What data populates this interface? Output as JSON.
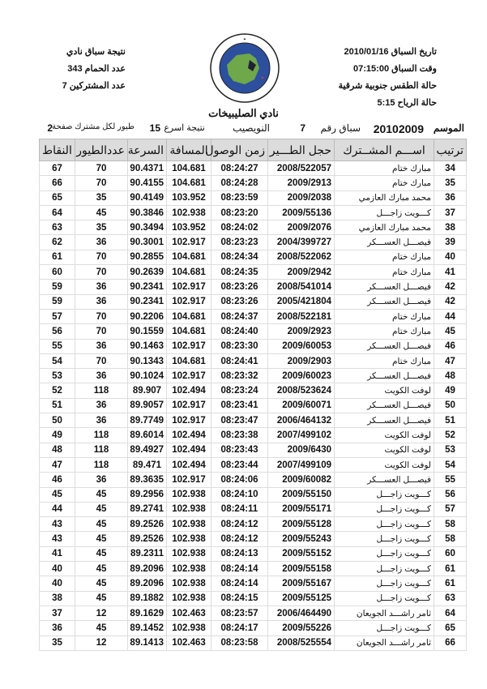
{
  "header_left": {
    "title": "نتيجة سباق نادي",
    "pigeons_label": "عدد الحمام",
    "pigeons": "343",
    "participants_label": "عدد المشتركين",
    "participants": "7"
  },
  "header_right": {
    "date_label": "تاريخ السباق",
    "date": "2010/01/16",
    "time_label": "وقت السباق",
    "time": "07:15:00",
    "weather": "حالة الطقس جنوبية شرقية",
    "wind_label": "حالة الرياح",
    "wind": "5:15"
  },
  "logo": {
    "text_top": "الاتحاد الكويتي لسباق حمام الزاجل",
    "text_bottom": "KUWAIT FEDERATION FOR RACING PIGEON"
  },
  "club": "نادي الصليبيخات",
  "meta": {
    "season_label": "الموسم",
    "season": "20102009",
    "race_label": "سباق رقم",
    "race": "7",
    "location": "النويصيب",
    "fastest_label": "نتيجة اسرع",
    "fastest": "15",
    "per_label": "طيور لكل مشترك صفحة",
    "page": "2"
  },
  "columns": [
    "ترتيب",
    "اســـم المشــترك",
    "حجل الطـــير",
    "زمن الوصول",
    "المسافة",
    "السرعة",
    "عددالطيور",
    "النقاط"
  ],
  "rows": [
    [
      "34",
      "مبارك ختام",
      "2008/522057",
      "08:24:27",
      "104.681",
      "90.4371",
      "70",
      "67"
    ],
    [
      "35",
      "مبارك ختام",
      "2009/2913",
      "08:24:28",
      "104.681",
      "90.4155",
      "70",
      "66"
    ],
    [
      "36",
      "محمد مبارك العازمي",
      "2009/2038",
      "08:23:59",
      "103.952",
      "90.4149",
      "35",
      "65"
    ],
    [
      "37",
      "كـــويت زاجـــل",
      "2009/55136",
      "08:23:20",
      "102.938",
      "90.3846",
      "45",
      "64"
    ],
    [
      "38",
      "محمد مبارك العازمي",
      "2009/2076",
      "08:24:02",
      "103.952",
      "90.3494",
      "35",
      "63"
    ],
    [
      "39",
      "فيصـــل العســـكر",
      "2004/399727",
      "08:23:23",
      "102.917",
      "90.3001",
      "36",
      "62"
    ],
    [
      "40",
      "مبارك ختام",
      "2008/522062",
      "08:24:34",
      "104.681",
      "90.2855",
      "70",
      "61"
    ],
    [
      "41",
      "مبارك ختام",
      "2009/2942",
      "08:24:35",
      "104.681",
      "90.2639",
      "70",
      "60"
    ],
    [
      "42",
      "فيصـــل العســـكر",
      "2008/541014",
      "08:23:26",
      "102.917",
      "90.2341",
      "36",
      "59"
    ],
    [
      "42",
      "فيصـــل العســـكر",
      "2005/421804",
      "08:23:26",
      "102.917",
      "90.2341",
      "36",
      "59"
    ],
    [
      "44",
      "مبارك ختام",
      "2008/522181",
      "08:24:37",
      "104.681",
      "90.2206",
      "70",
      "57"
    ],
    [
      "45",
      "مبارك ختام",
      "2009/2923",
      "08:24:40",
      "104.681",
      "90.1559",
      "70",
      "56"
    ],
    [
      "46",
      "فيصـــل العســـكر",
      "2009/60053",
      "08:23:30",
      "102.917",
      "90.1463",
      "36",
      "55"
    ],
    [
      "47",
      "مبارك ختام",
      "2009/2903",
      "08:24:41",
      "104.681",
      "90.1343",
      "70",
      "54"
    ],
    [
      "48",
      "فيصـــل العســـكر",
      "2009/60023",
      "08:23:32",
      "102.917",
      "90.1024",
      "36",
      "53"
    ],
    [
      "49",
      "لوفت الكويت",
      "2008/523624",
      "08:23:24",
      "102.494",
      "89.907",
      "118",
      "52"
    ],
    [
      "50",
      "فيصـــل العســـكر",
      "2009/60071",
      "08:23:41",
      "102.917",
      "89.9057",
      "36",
      "51"
    ],
    [
      "51",
      "فيصـــل العســـكر",
      "2006/464132",
      "08:23:47",
      "102.917",
      "89.7749",
      "36",
      "50"
    ],
    [
      "52",
      "لوفت الكويت",
      "2007/499102",
      "08:23:38",
      "102.494",
      "89.6014",
      "118",
      "49"
    ],
    [
      "53",
      "لوفت الكويت",
      "2009/6430",
      "08:23:43",
      "102.494",
      "89.4927",
      "118",
      "48"
    ],
    [
      "54",
      "لوفت الكويت",
      "2007/499109",
      "08:23:44",
      "102.494",
      "89.471",
      "118",
      "47"
    ],
    [
      "55",
      "فيصـــل العســـكر",
      "2009/60082",
      "08:24:06",
      "102.917",
      "89.3635",
      "36",
      "46"
    ],
    [
      "56",
      "كـــويت زاجـــل",
      "2009/55150",
      "08:24:10",
      "102.938",
      "89.2956",
      "45",
      "45"
    ],
    [
      "57",
      "كـــويت زاجـــل",
      "2009/55171",
      "08:24:11",
      "102.938",
      "89.2741",
      "45",
      "44"
    ],
    [
      "58",
      "كـــويت زاجـــل",
      "2009/55128",
      "08:24:12",
      "102.938",
      "89.2526",
      "45",
      "43"
    ],
    [
      "58",
      "كـــويت زاجـــل",
      "2009/55243",
      "08:24:12",
      "102.938",
      "89.2526",
      "45",
      "43"
    ],
    [
      "60",
      "كـــويت زاجـــل",
      "2009/55152",
      "08:24:13",
      "102.938",
      "89.2311",
      "45",
      "41"
    ],
    [
      "61",
      "كـــويت زاجـــل",
      "2009/55158",
      "08:24:14",
      "102.938",
      "89.2096",
      "45",
      "40"
    ],
    [
      "61",
      "كـــويت زاجـــل",
      "2009/55167",
      "08:24:14",
      "102.938",
      "89.2096",
      "45",
      "40"
    ],
    [
      "63",
      "كـــويت زاجـــل",
      "2009/55125",
      "08:24:15",
      "102.938",
      "89.1882",
      "45",
      "38"
    ],
    [
      "64",
      "ثامر راشـــد الجويعان",
      "2006/464490",
      "08:23:57",
      "102.463",
      "89.1629",
      "12",
      "37"
    ],
    [
      "65",
      "كـــويت زاجـــل",
      "2009/55226",
      "08:24:17",
      "102.938",
      "89.1452",
      "45",
      "36"
    ],
    [
      "66",
      "ثامر راشـــد الجويعان",
      "2008/525554",
      "08:23:58",
      "102.463",
      "89.1413",
      "12",
      "35"
    ]
  ]
}
